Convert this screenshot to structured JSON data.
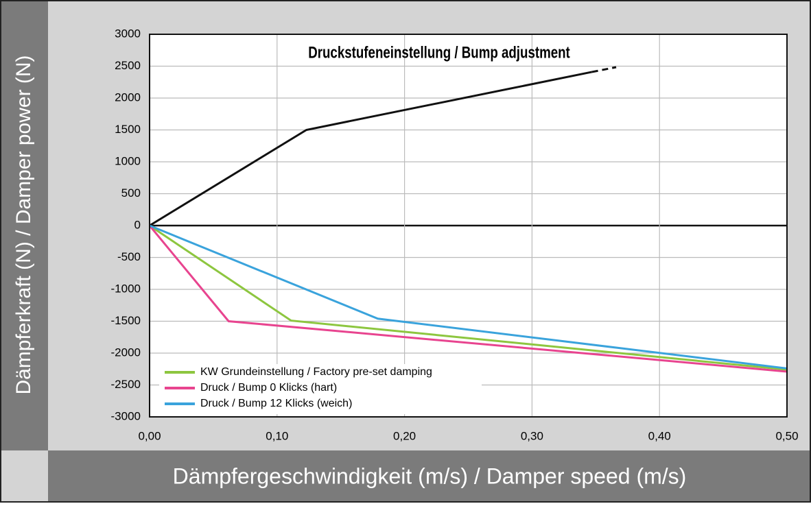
{
  "chart_data": {
    "type": "line",
    "title": "Druckstufeneinstellung / Bump adjustment",
    "x_label": "Dämpfergeschwindigkeit (m/s) / Damper speed (m/s)",
    "y_label": "Dämpferkraft (N) / Damper power (N)",
    "xlim": [
      0,
      0.5
    ],
    "ylim": [
      -3000,
      3000
    ],
    "xticks": [
      {
        "value": 0,
        "label": "0,00"
      },
      {
        "value": 0.1,
        "label": "0,10"
      },
      {
        "value": 0.2,
        "label": "0,20"
      },
      {
        "value": 0.3,
        "label": "0,30"
      },
      {
        "value": 0.4,
        "label": "0,40"
      },
      {
        "value": 0.5,
        "label": "0,50"
      }
    ],
    "yticks": [
      -3000,
      -2500,
      -2000,
      -1500,
      -1000,
      -500,
      0,
      500,
      1000,
      1500,
      2000,
      2500,
      3000
    ],
    "grid": true,
    "legend": "lower left",
    "series": [
      {
        "color": "#111111",
        "x": [
          0,
          0.123,
          0.347
        ],
        "values": [
          0,
          1500,
          2409
        ]
      },
      {
        "color": "#111111",
        "dashed": true,
        "x": [
          0.347,
          0.366
        ],
        "values": [
          2409,
          2484
        ]
      },
      {
        "name": "KW Grundeinstellung / Factory pre-set damping",
        "color": "#8dc63f",
        "x": [
          0,
          0.111,
          0.5
        ],
        "values": [
          0,
          -1490,
          -2260
        ]
      },
      {
        "name": "Druck / Bump 0 Klicks (hart)",
        "color": "#e8448f",
        "x": [
          0,
          0.062,
          0.5
        ],
        "values": [
          0,
          -1500,
          -2290
        ]
      },
      {
        "name": "Druck / Bump 12 Klicks (weich)",
        "color": "#3aa3dc",
        "x": [
          0,
          0.179,
          0.5
        ],
        "values": [
          0,
          -1460,
          -2240
        ]
      }
    ]
  }
}
